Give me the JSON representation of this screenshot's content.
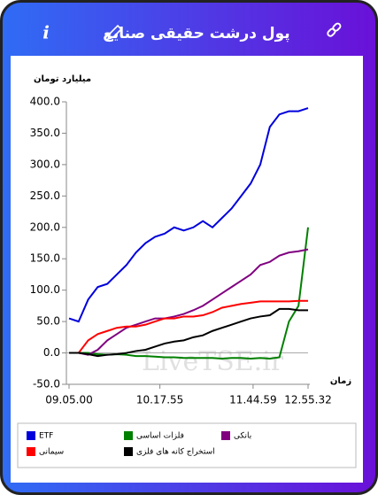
{
  "header": {
    "title": "پول درشت حقیقی صنایع",
    "info": "i"
  },
  "watermark": "LiveTSE.ir",
  "chart_data": {
    "type": "line",
    "ylabel": "میلیارد تومان",
    "xlabel": "زمان",
    "x": [
      0,
      4,
      8,
      12,
      16,
      20,
      24,
      28,
      32,
      36,
      40,
      44,
      48,
      52,
      56,
      60,
      64,
      68,
      72,
      76,
      80,
      84,
      88,
      92,
      96,
      100
    ],
    "xlim": [
      0,
      100
    ],
    "xticks": [
      {
        "value": 0,
        "label": "09.05.00"
      },
      {
        "value": 38,
        "label": "10.17.55"
      },
      {
        "value": 77,
        "label": "11.44.59"
      },
      {
        "value": 100,
        "label": "12.55.32"
      }
    ],
    "ylim": [
      -50,
      400
    ],
    "yticks": [
      {
        "value": 400,
        "label": "400.0"
      },
      {
        "value": 350,
        "label": "350.0"
      },
      {
        "value": 300,
        "label": "300.0"
      },
      {
        "value": 250,
        "label": "250.0"
      },
      {
        "value": 200,
        "label": "200.0"
      },
      {
        "value": 150,
        "label": "150.0"
      },
      {
        "value": 100,
        "label": "100.0"
      },
      {
        "value": 50,
        "label": "50.0"
      },
      {
        "value": 0,
        "label": "0.0"
      },
      {
        "value": -50,
        "label": "-50.0"
      }
    ],
    "series": [
      {
        "name": "ETF",
        "color": "#0000dd",
        "values": [
          55,
          50,
          85,
          105,
          110,
          125,
          140,
          160,
          175,
          185,
          190,
          200,
          195,
          200,
          210,
          200,
          215,
          230,
          250,
          270,
          300,
          360,
          380,
          385,
          385,
          390
        ]
      },
      {
        "name": "فلزات اساسی",
        "color": "#008000",
        "values": [
          0,
          0,
          0,
          -2,
          -3,
          -2,
          -3,
          -5,
          -5,
          -6,
          -7,
          -7,
          -8,
          -8,
          -8,
          -8,
          -9,
          -8,
          -8,
          -9,
          -8,
          -9,
          -7,
          50,
          75,
          200
        ]
      },
      {
        "name": "بانکی",
        "color": "#800080",
        "values": [
          0,
          0,
          -3,
          5,
          20,
          30,
          40,
          45,
          50,
          55,
          55,
          58,
          62,
          68,
          75,
          85,
          95,
          105,
          115,
          125,
          140,
          145,
          155,
          160,
          162,
          165
        ]
      },
      {
        "name": "سیمانی",
        "color": "#ff0000",
        "values": [
          0,
          0,
          20,
          30,
          35,
          40,
          42,
          42,
          45,
          50,
          55,
          55,
          58,
          58,
          60,
          65,
          72,
          75,
          78,
          80,
          82,
          82,
          82,
          82,
          83,
          83
        ]
      },
      {
        "name": "استخراج کانه های فلزی",
        "color": "#000000",
        "values": [
          0,
          0,
          -2,
          -5,
          -3,
          -2,
          0,
          3,
          5,
          10,
          15,
          18,
          20,
          25,
          28,
          35,
          40,
          45,
          50,
          55,
          58,
          60,
          70,
          70,
          68,
          68
        ]
      }
    ]
  }
}
